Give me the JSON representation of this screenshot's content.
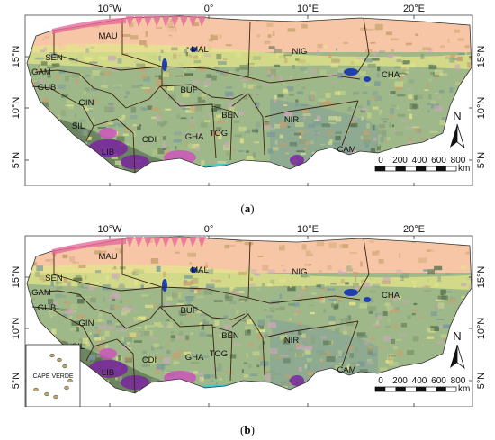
{
  "panels": [
    {
      "caption": "(a)",
      "top_ticks": [
        "10°W",
        "0°",
        "10°E",
        "20°E"
      ],
      "bottom_ticks": [
        "10°W",
        "0°",
        "10°E",
        "20°E"
      ],
      "left_ticks": [
        "15°N",
        "10°N",
        "5°N"
      ],
      "right_ticks": [
        "15°N",
        "10°N",
        "5°N"
      ],
      "countries": [
        "MAU",
        "MAL",
        "NIG",
        "SEN",
        "GAM",
        "GUB",
        "GIN",
        "SIL",
        "LIB",
        "CDI",
        "BUF",
        "GHA",
        "TOG",
        "BEN",
        "NIR",
        "CHA",
        "CAM"
      ],
      "north_label": "N",
      "scale": {
        "ticks": [
          "0",
          "200",
          "400",
          "600",
          "800"
        ],
        "unit": "km"
      },
      "inset": null
    },
    {
      "caption": "(b)",
      "top_ticks": [
        "10°W",
        "0°",
        "10°E",
        "20°E"
      ],
      "bottom_ticks": [
        "10°W",
        "0°",
        "10°E",
        "20°E"
      ],
      "left_ticks": [
        "15°N",
        "10°N",
        "5°N"
      ],
      "right_ticks": [
        "15°N",
        "10°N",
        "5°N"
      ],
      "countries": [
        "MAU",
        "MAL",
        "NIG",
        "SEN",
        "GAM",
        "GUB",
        "GIN",
        "SIL",
        "LIB",
        "CDI",
        "BUF",
        "GHA",
        "TOG",
        "BEN",
        "NIR",
        "CHA",
        "CAM"
      ],
      "north_label": "N",
      "scale": {
        "ticks": [
          "0",
          "200",
          "400",
          "600",
          "800"
        ],
        "unit": "km"
      },
      "inset": {
        "label": "CAPE VERDE"
      }
    }
  ],
  "colors": {
    "sahel_band": "#f6c6a6",
    "savanna": "#9fb889",
    "cropland": "#e3e58a",
    "forest": "#556f4e",
    "wetland": "#7a9a9a",
    "mosaic": "#c9a8b8",
    "water": "#1f3fb0",
    "purple": "#7b1fa2",
    "magenta": "#d04fbf",
    "cyan": "#2fd0e0",
    "pink_north": "#e86a9a",
    "bare": "#c7a16d",
    "border": "#3b2414"
  }
}
